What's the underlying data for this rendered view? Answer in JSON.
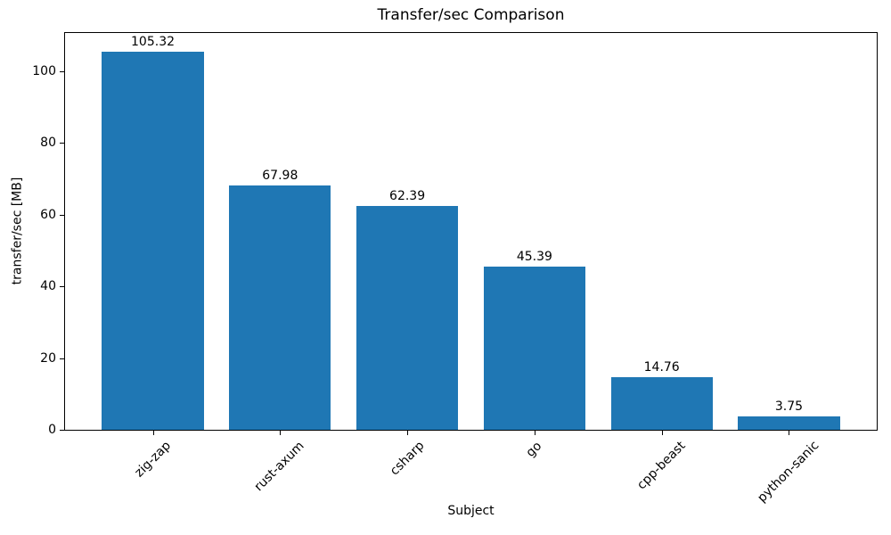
{
  "chart_data": {
    "type": "bar",
    "title": "Transfer/sec Comparison",
    "xlabel": "Subject",
    "ylabel": "transfer/sec [MB]",
    "categories": [
      "zig-zap",
      "rust-axum",
      "csharp",
      "go",
      "cpp-beast",
      "python-sanic"
    ],
    "values": [
      105.32,
      67.98,
      62.39,
      45.39,
      14.76,
      3.75
    ],
    "value_labels": [
      "105.32",
      "67.98",
      "62.39",
      "45.39",
      "14.76",
      "3.75"
    ],
    "bar_color": "#1f77b4",
    "ylim": [
      0,
      110.59
    ],
    "yticks": [
      0,
      20,
      40,
      60,
      80,
      100
    ],
    "xlim": [
      -0.69,
      5.69
    ],
    "bar_width": 0.8,
    "xtick_rotation_deg": 45,
    "grid": false,
    "legend": null
  }
}
